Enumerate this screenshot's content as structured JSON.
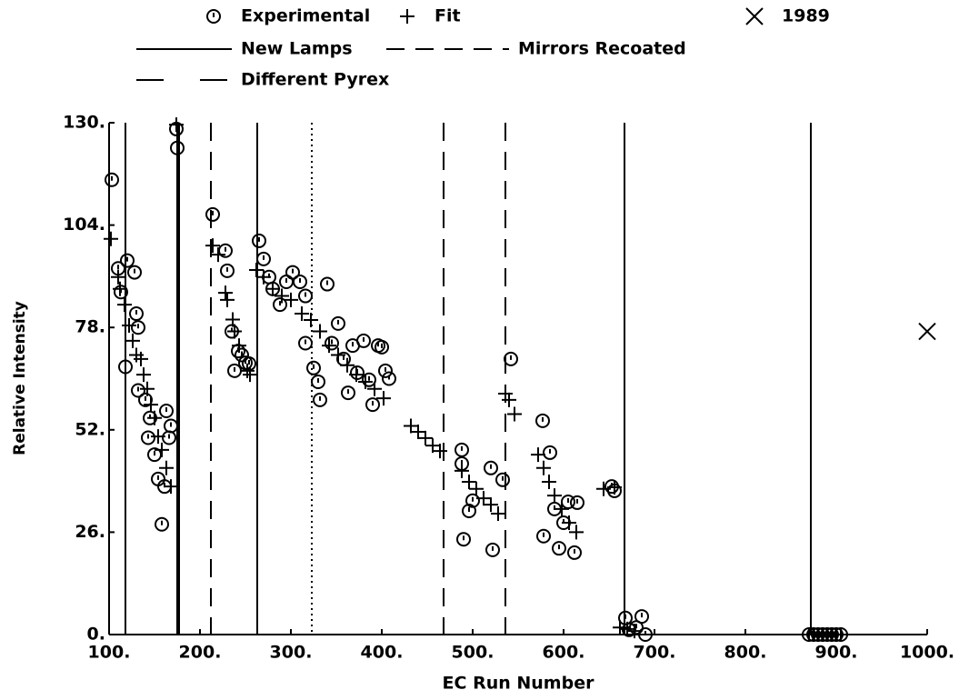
{
  "chart_data": {
    "type": "scatter",
    "xlabel": "EC Run Number",
    "ylabel": "Relative Intensity",
    "xlim": [
      100,
      1000
    ],
    "ylim": [
      0,
      130
    ],
    "xticks": [
      {
        "value": 100,
        "label": "100."
      },
      {
        "value": 200,
        "label": "200."
      },
      {
        "value": 300,
        "label": "300."
      },
      {
        "value": 400,
        "label": "400."
      },
      {
        "value": 500,
        "label": "500."
      },
      {
        "value": 600,
        "label": "600."
      },
      {
        "value": 700,
        "label": "700."
      },
      {
        "value": 800,
        "label": "800."
      },
      {
        "value": 900,
        "label": "900."
      },
      {
        "value": 1000,
        "label": "1000."
      }
    ],
    "yticks": [
      {
        "value": 0,
        "label": "0."
      },
      {
        "value": 26,
        "label": "26."
      },
      {
        "value": 52,
        "label": "52."
      },
      {
        "value": 78,
        "label": "78."
      },
      {
        "value": 104,
        "label": "104."
      },
      {
        "value": 130,
        "label": "130."
      }
    ],
    "series": [
      {
        "name": "Experimental",
        "marker": "octagon",
        "color": "#000000",
        "x": [
          103,
          110,
          113,
          120,
          118,
          128,
          130,
          132,
          132,
          140,
          143,
          145,
          150,
          154,
          158,
          161,
          163,
          166,
          168,
          174,
          175,
          214,
          228,
          230,
          235,
          238,
          242,
          246,
          250,
          254,
          265,
          270,
          276,
          280,
          288,
          295,
          302,
          310,
          316,
          316,
          325,
          330,
          332,
          340,
          345,
          352,
          358,
          363,
          368,
          373,
          380,
          386,
          390,
          396,
          400,
          404,
          408,
          488,
          488,
          490,
          496,
          500,
          520,
          522,
          533,
          542,
          577,
          578,
          585,
          590,
          595,
          600,
          605,
          612,
          615,
          653,
          656,
          668,
          672,
          680,
          686,
          690,
          870,
          875,
          880,
          885,
          890,
          895,
          900,
          905
        ],
        "values": [
          115.5,
          93,
          87,
          95,
          68,
          92,
          81.5,
          78,
          62,
          59.6,
          50,
          55,
          45.7,
          39.5,
          28,
          37.6,
          56.8,
          50,
          53,
          128.4,
          123.6,
          106.7,
          97.5,
          92.4,
          77,
          67,
          72,
          71,
          69,
          68.8,
          100,
          95.4,
          90.8,
          87.8,
          83.8,
          89.6,
          92,
          89.6,
          86,
          74,
          67.7,
          64.2,
          59.6,
          89,
          74,
          79,
          70,
          61.4,
          73.4,
          66.5,
          74.6,
          64.7,
          58.4,
          73.4,
          73,
          67,
          65,
          46.9,
          43.4,
          24.2,
          31.4,
          34,
          42.3,
          21.5,
          39.3,
          70,
          54.3,
          25,
          46.2,
          31.9,
          21.9,
          28.4,
          33.7,
          20.8,
          33.5,
          37.6,
          36.5,
          4.2,
          1.2,
          1.8,
          4.6,
          0,
          0,
          0,
          0,
          0,
          0,
          0,
          0,
          0
        ]
      },
      {
        "name": "Fit",
        "marker": "plus",
        "color": "#000000",
        "x": [
          102,
          110,
          112,
          117,
          122,
          126,
          130,
          135,
          138,
          142,
          146,
          150,
          154,
          158,
          163,
          168,
          174,
          214,
          220,
          228,
          230,
          236,
          238,
          243,
          252,
          255,
          262,
          270,
          280,
          290,
          300,
          312,
          322,
          332,
          342,
          352,
          362,
          372,
          382,
          392,
          402,
          432,
          440,
          448,
          456,
          464,
          488,
          496,
          504,
          512,
          520,
          528,
          536,
          540,
          546,
          572,
          578,
          584,
          590,
          598,
          606,
          614,
          644,
          656,
          662,
          670,
          678,
          870,
          875,
          880,
          885,
          890,
          895,
          900,
          905
        ],
        "values": [
          100.5,
          90.8,
          87.8,
          83.8,
          78.5,
          74.6,
          71,
          70,
          66,
          62.4,
          58.4,
          55,
          50.3,
          46.9,
          42.3,
          37.6,
          129.5,
          98.8,
          96.5,
          86.8,
          85,
          80,
          77,
          73.4,
          67,
          66,
          92.6,
          90.8,
          87.8,
          86,
          85,
          81.5,
          79.9,
          77,
          73.4,
          71,
          68.4,
          66,
          64.2,
          62.4,
          60,
          53,
          51.5,
          49.9,
          48,
          46.6,
          41.6,
          38.8,
          37,
          34.6,
          33,
          30.7,
          61.2,
          59.6,
          56,
          45.7,
          42.3,
          38.8,
          35.3,
          31.9,
          28.4,
          26,
          37,
          37.4,
          1.8,
          1.4,
          0.9,
          0,
          0,
          0,
          0,
          0,
          0,
          0,
          0
        ]
      },
      {
        "name": "1989",
        "marker": "cross",
        "color": "#000000",
        "x": [
          1000
        ],
        "values": [
          77
        ]
      }
    ],
    "reference_lines": [
      {
        "name": "New Lamps",
        "dash": "none",
        "x": [
          118,
          175,
          177,
          263,
          667,
          872
        ]
      },
      {
        "name": "Mirrors Recoated",
        "dash": "20 12",
        "x": [
          212,
          468,
          536
        ]
      },
      {
        "name": "Different Pyrex",
        "dash": "2 4",
        "x": [
          323
        ]
      }
    ]
  }
}
